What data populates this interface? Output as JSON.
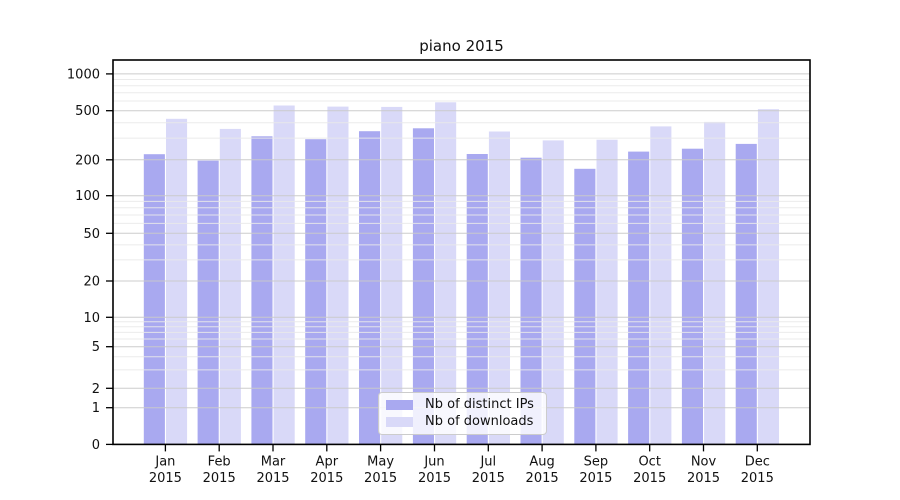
{
  "chart_data": {
    "type": "bar",
    "title": "piano 2015",
    "categories": [
      "Jan",
      "Feb",
      "Mar",
      "Apr",
      "May",
      "Jun",
      "Jul",
      "Aug",
      "Sep",
      "Oct",
      "Nov",
      "Dec"
    ],
    "categories_year": "2015",
    "series": [
      {
        "name": "Nb of distinct IPs",
        "color": "#a9a9f0",
        "values": [
          222,
          197,
          310,
          294,
          341,
          360,
          223,
          208,
          168,
          233,
          246,
          269
        ]
      },
      {
        "name": "Nb of downloads",
        "color": "#d9d9f8",
        "values": [
          430,
          356,
          551,
          540,
          537,
          586,
          339,
          287,
          291,
          373,
          406,
          514
        ]
      }
    ],
    "xlabel": "",
    "ylabel": "",
    "yscale": "symlog",
    "yticks": [
      0,
      1,
      2,
      5,
      10,
      20,
      50,
      100,
      200,
      500,
      1000
    ],
    "ylim": [
      0,
      1300
    ],
    "grid": true,
    "grid_which": "both",
    "legend_position": "lower center"
  },
  "colors": {
    "background": "#ffffff",
    "spine": "#000000",
    "tick": "#000000",
    "grid_major": "#c9c9c9",
    "grid_minor": "#e9e9e9",
    "text": "#111111"
  }
}
